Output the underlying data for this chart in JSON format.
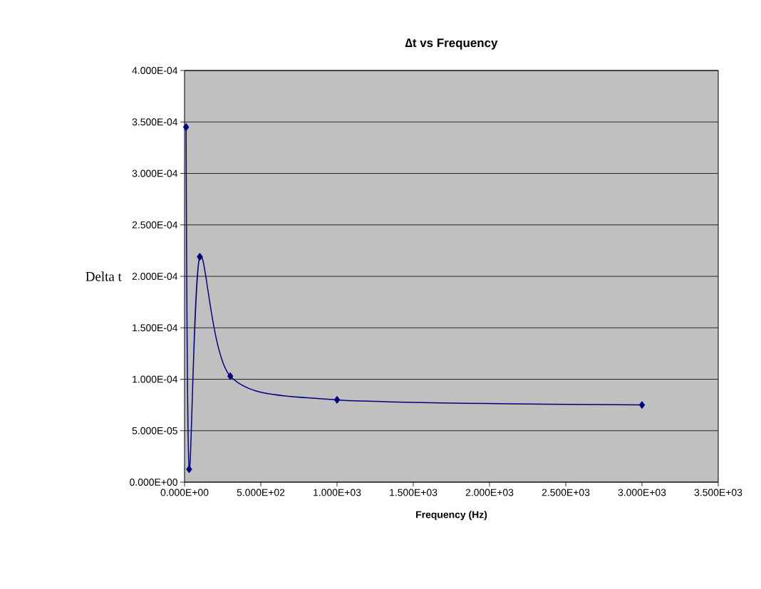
{
  "chart_data": {
    "type": "line",
    "title": "∆t vs Frequency",
    "xlabel": "Frequency (Hz)",
    "ylabel": "Delta t",
    "x": [
      10,
      30,
      100,
      300,
      1000,
      3000
    ],
    "series": [
      {
        "color": "#000080",
        "values": [
          0.000345,
          1.25e-05,
          0.000219,
          0.000103,
          8e-05,
          7.5e-05
        ]
      }
    ],
    "marker": "diamond",
    "line_style": "solid",
    "grid": "y",
    "xlim": [
      0,
      3500
    ],
    "ylim": [
      0,
      0.0004
    ],
    "xticks": [
      {
        "value": 0,
        "label": "0.000E+00"
      },
      {
        "value": 500,
        "label": "5.000E+02"
      },
      {
        "value": 1000,
        "label": "1.000E+03"
      },
      {
        "value": 1500,
        "label": "1.500E+03"
      },
      {
        "value": 2000,
        "label": "2.000E+03"
      },
      {
        "value": 2500,
        "label": "2.500E+03"
      },
      {
        "value": 3000,
        "label": "3.000E+03"
      },
      {
        "value": 3500,
        "label": "3.500E+03"
      }
    ],
    "yticks": [
      {
        "value": 0,
        "label": "0.000E+00"
      },
      {
        "value": 5e-05,
        "label": "5.000E-05"
      },
      {
        "value": 0.0001,
        "label": "1.000E-04"
      },
      {
        "value": 0.00015,
        "label": "1.500E-04"
      },
      {
        "value": 0.0002,
        "label": "2.000E-04"
      },
      {
        "value": 0.00025,
        "label": "2.500E-04"
      },
      {
        "value": 0.0003,
        "label": "3.000E-04"
      },
      {
        "value": 0.00035,
        "label": "3.500E-04"
      },
      {
        "value": 0.0004,
        "label": "4.000E-04"
      }
    ]
  }
}
